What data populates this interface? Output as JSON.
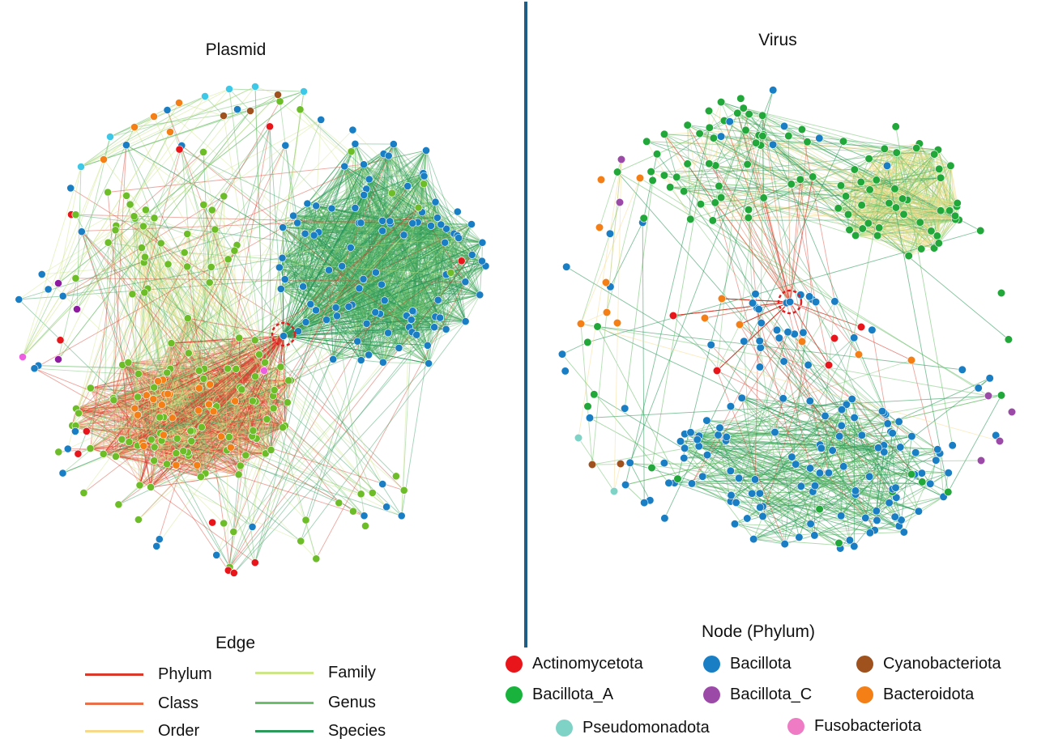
{
  "panels": {
    "plasmid_title": "Plasmid",
    "virus_title": "Virus"
  },
  "colors": {
    "divider": "#1f5d86",
    "highlight_ring": "#e02020",
    "Actinomycetota": "#e8161b",
    "Bacillota": "#1a7ec4",
    "Cyanobacteriota": "#a0521e",
    "Bacillota_A": "#19b23d",
    "Bacillota_C": "#9b4aa8",
    "Bacteroidota": "#f57f17",
    "Pseudomonadota": "#7fd3c6",
    "Fusobacteriota": "#ee7bc4",
    "node_green_plasmid": "#6cbd28",
    "node_cyan_plasmid": "#3dc8e8",
    "node_purple_plasmid": "#8e1ba0",
    "node_pink_plasmid": "#ee5ee0",
    "edge_Phylum": "#d9392b",
    "edge_Class": "#e8704a",
    "edge_Order": "#f7d98c",
    "edge_Family": "#cde68a",
    "edge_Genus": "#6cbf6a",
    "edge_Species": "#2c9a5a"
  },
  "edge_legend": {
    "title": "Edge",
    "items": [
      {
        "label": "Phylum",
        "color": "#d9392b"
      },
      {
        "label": "Class",
        "color": "#e8704a"
      },
      {
        "label": "Order",
        "color": "#f7d98c"
      },
      {
        "label": "Family",
        "color": "#cde68a"
      },
      {
        "label": "Genus",
        "color": "#6cbf6a"
      },
      {
        "label": "Species",
        "color": "#2c9a5a"
      }
    ]
  },
  "node_legend": {
    "title": "Node (Phylum)",
    "items": [
      {
        "label": "Actinomycetota",
        "color": "#e8161b"
      },
      {
        "label": "Bacillota",
        "color": "#1a7ec4"
      },
      {
        "label": "Cyanobacteriota",
        "color": "#a0521e"
      },
      {
        "label": "Bacillota_A",
        "color": "#19b23d"
      },
      {
        "label": "Bacillota_C",
        "color": "#9b4aa8"
      },
      {
        "label": "Bacteroidota",
        "color": "#f57f17"
      },
      {
        "label": "Pseudomonadota",
        "color": "#7fd3c6"
      },
      {
        "label": "Fusobacteriota",
        "color": "#ee7bc4"
      }
    ]
  }
}
